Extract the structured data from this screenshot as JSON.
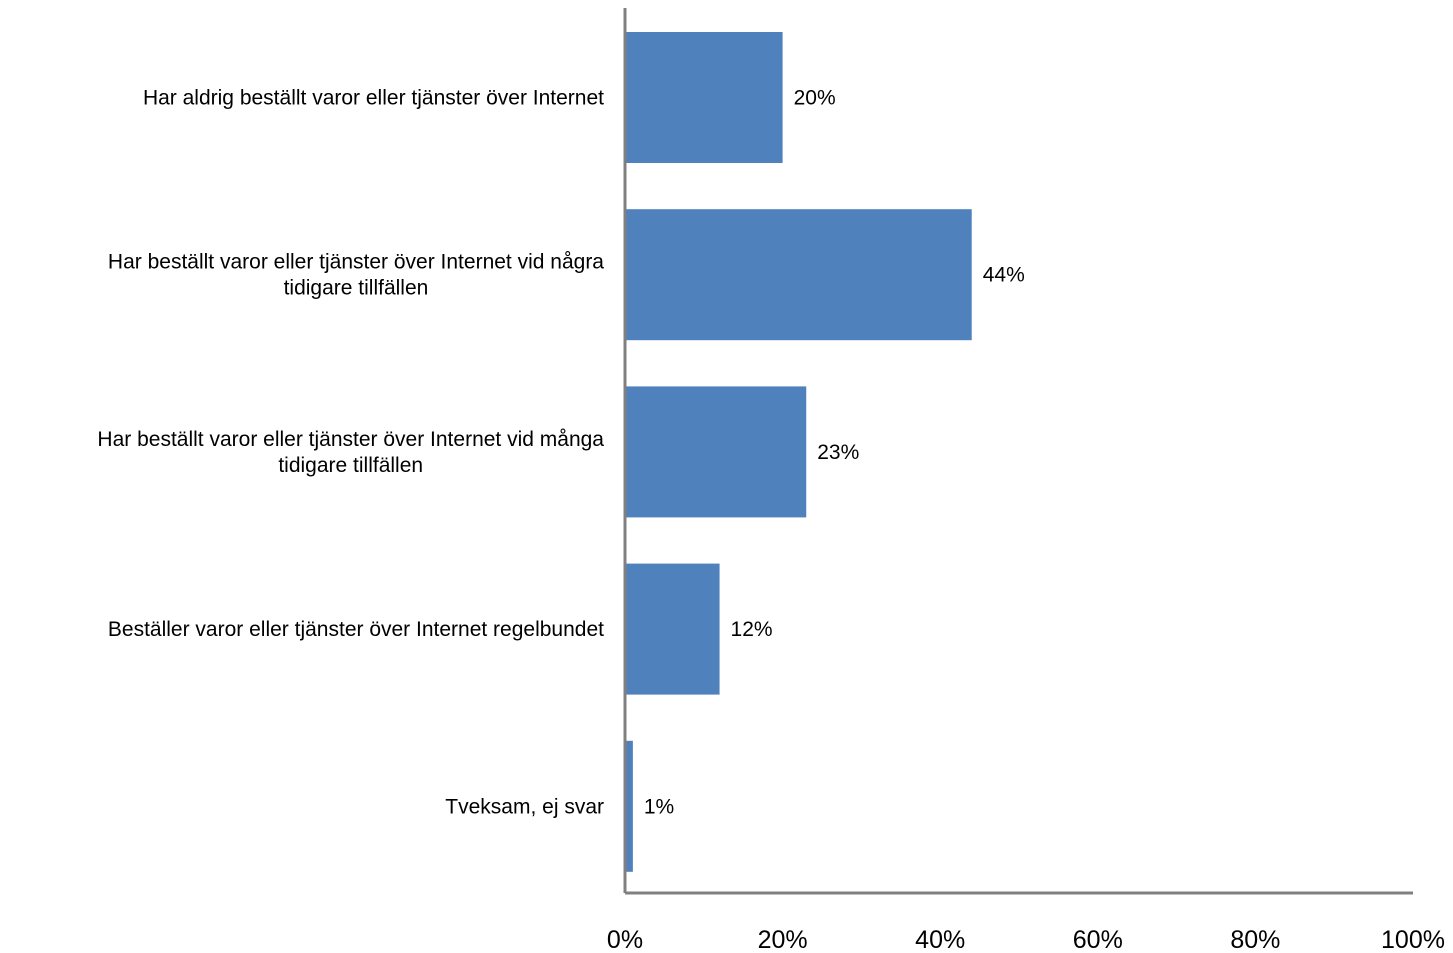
{
  "chart_data": {
    "type": "bar",
    "orientation": "horizontal",
    "categories": [
      [
        "Har aldrig beställt varor eller tjänster över Internet"
      ],
      [
        "Har beställt varor eller tjänster över Internet vid några",
        "tidigare tillfällen"
      ],
      [
        "Har beställt varor eller tjänster över Internet vid många",
        "tidigare tillfällen"
      ],
      [
        "Beställer varor eller tjänster över Internet regelbundet"
      ],
      [
        "Tveksam, ej svar"
      ]
    ],
    "values": [
      20,
      44,
      23,
      12,
      1
    ],
    "data_labels": [
      "20%",
      "44%",
      "23%",
      "12%",
      "1%"
    ],
    "xlim": [
      0,
      100
    ],
    "x_ticks": [
      0,
      20,
      40,
      60,
      80,
      100
    ],
    "x_tick_labels": [
      "0%",
      "20%",
      "40%",
      "60%",
      "80%",
      "100%"
    ],
    "grid": false,
    "bar_color": "#4f81bd",
    "axis_color": "#808080"
  }
}
